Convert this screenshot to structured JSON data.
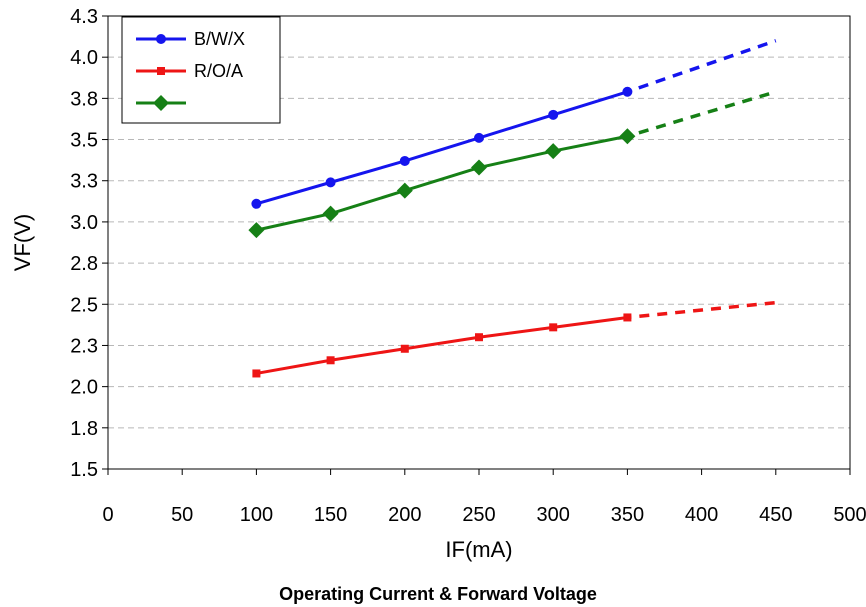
{
  "chart_data": {
    "type": "line",
    "caption": "Operating Current & Forward Voltage",
    "xlabel": "IF(mA)",
    "ylabel": "VF(V)",
    "xlim": [
      0,
      500
    ],
    "ylim": [
      1.5,
      4.25
    ],
    "x_ticks": [
      0,
      50,
      100,
      150,
      200,
      250,
      300,
      350,
      400,
      450,
      500
    ],
    "y_ticks": [
      1.5,
      1.75,
      2.0,
      2.25,
      2.5,
      2.75,
      3.0,
      3.25,
      3.5,
      3.75,
      4.0,
      4.25
    ],
    "y_tick_labels": [
      "1.5",
      "1.8",
      "2.0",
      "2.3",
      "2.5",
      "2.8",
      "3.0",
      "3.3",
      "3.5",
      "3.8",
      "4.0",
      "4.3"
    ],
    "grid": "horizontal dashed",
    "legend_position": "top-left",
    "series": [
      {
        "name": "B/W/X",
        "color": "#1515ee",
        "marker": "circle",
        "x": [
          100,
          150,
          200,
          250,
          300,
          350
        ],
        "y": [
          3.11,
          3.24,
          3.37,
          3.51,
          3.65,
          3.79
        ],
        "extrapolated_x": [
          350,
          450
        ],
        "extrapolated_y": [
          3.79,
          4.1
        ]
      },
      {
        "name": "R/O/A",
        "color": "#ee1515",
        "marker": "square",
        "x": [
          100,
          150,
          200,
          250,
          300,
          350
        ],
        "y": [
          2.08,
          2.16,
          2.23,
          2.3,
          2.36,
          2.42
        ],
        "extrapolated_x": [
          350,
          450
        ],
        "extrapolated_y": [
          2.42,
          2.51
        ]
      },
      {
        "name": "",
        "color": "#168016",
        "marker": "diamond",
        "x": [
          100,
          150,
          200,
          250,
          300,
          350
        ],
        "y": [
          2.95,
          3.05,
          3.19,
          3.33,
          3.43,
          3.52
        ],
        "extrapolated_x": [
          350,
          450
        ],
        "extrapolated_y": [
          3.52,
          3.79
        ]
      }
    ]
  }
}
